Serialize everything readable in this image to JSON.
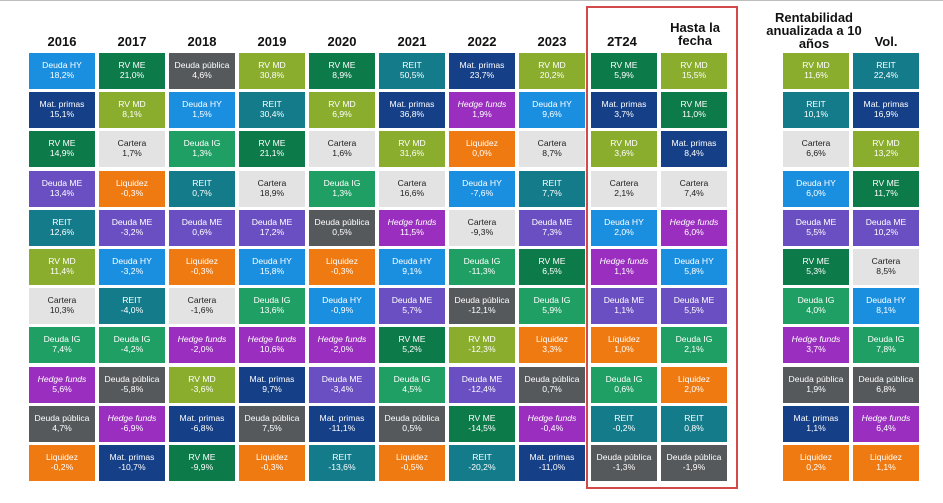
{
  "colors": {
    "RV ME": "#0d7a4a",
    "RV MD": "#8aad2e",
    "Deuda HY": "#1a8fe0",
    "Deuda IG": "#1f9f63",
    "Deuda ME": "#6a4fc3",
    "Deuda pública": "#56595c",
    "Cartera": "#e3e3e3",
    "Liquidez": "#ef7a12",
    "REIT": "#137b8a",
    "Mat. primas": "#153f86",
    "Hedge funds": "#9a2fbf"
  },
  "chart_data": {
    "type": "table",
    "columns": [
      {
        "header": "2016",
        "cells": [
          {
            "name": "Deuda HY",
            "value": "18,2%"
          },
          {
            "name": "Mat. primas",
            "value": "15,1%"
          },
          {
            "name": "RV ME",
            "value": "14,9%"
          },
          {
            "name": "Deuda ME",
            "value": "13,4%"
          },
          {
            "name": "REIT",
            "value": "12,6%"
          },
          {
            "name": "RV MD",
            "value": "11,4%"
          },
          {
            "name": "Cartera",
            "value": "10,3%"
          },
          {
            "name": "Deuda IG",
            "value": "7,4%"
          },
          {
            "name": "Hedge funds",
            "value": "5,6%"
          },
          {
            "name": "Deuda pública",
            "value": "4,7%"
          },
          {
            "name": "Liquidez",
            "value": "-0,2%"
          }
        ]
      },
      {
        "header": "2017",
        "cells": [
          {
            "name": "RV ME",
            "value": "21,0%"
          },
          {
            "name": "RV MD",
            "value": "8,1%"
          },
          {
            "name": "Cartera",
            "value": "1,7%"
          },
          {
            "name": "Liquidez",
            "value": "-0,3%"
          },
          {
            "name": "Deuda ME",
            "value": "-3,2%"
          },
          {
            "name": "Deuda HY",
            "value": "-3,2%"
          },
          {
            "name": "REIT",
            "value": "-4,0%"
          },
          {
            "name": "Deuda IG",
            "value": "-4,2%"
          },
          {
            "name": "Deuda pública",
            "value": "-5,8%"
          },
          {
            "name": "Hedge funds",
            "value": "-6,9%"
          },
          {
            "name": "Mat. primas",
            "value": "-10,7%"
          }
        ]
      },
      {
        "header": "2018",
        "cells": [
          {
            "name": "Deuda pública",
            "value": "4,6%"
          },
          {
            "name": "Deuda HY",
            "value": "1,5%"
          },
          {
            "name": "Deuda IG",
            "value": "1,3%"
          },
          {
            "name": "REIT",
            "value": "0,7%"
          },
          {
            "name": "Deuda ME",
            "value": "0,6%"
          },
          {
            "name": "Liquidez",
            "value": "-0,3%"
          },
          {
            "name": "Cartera",
            "value": "-1,6%"
          },
          {
            "name": "Hedge funds",
            "value": "-2,0%"
          },
          {
            "name": "RV MD",
            "value": "-3,6%"
          },
          {
            "name": "Mat. primas",
            "value": "-6,8%"
          },
          {
            "name": "RV ME",
            "value": "-9,9%"
          }
        ]
      },
      {
        "header": "2019",
        "cells": [
          {
            "name": "RV MD",
            "value": "30,8%"
          },
          {
            "name": "REIT",
            "value": "30,4%"
          },
          {
            "name": "RV ME",
            "value": "21,1%"
          },
          {
            "name": "Cartera",
            "value": "18,9%"
          },
          {
            "name": "Deuda ME",
            "value": "17,2%"
          },
          {
            "name": "Deuda HY",
            "value": "15,8%"
          },
          {
            "name": "Deuda IG",
            "value": "13,6%"
          },
          {
            "name": "Hedge funds",
            "value": "10,6%"
          },
          {
            "name": "Mat. primas",
            "value": "9,7%"
          },
          {
            "name": "Deuda pública",
            "value": "7,5%"
          },
          {
            "name": "Liquidez",
            "value": "-0,3%"
          }
        ]
      },
      {
        "header": "2020",
        "cells": [
          {
            "name": "RV ME",
            "value": "8,9%"
          },
          {
            "name": "RV MD",
            "value": "6,9%"
          },
          {
            "name": "Cartera",
            "value": "1,6%"
          },
          {
            "name": "Deuda IG",
            "value": "1,3%"
          },
          {
            "name": "Deuda pública",
            "value": "0,5%"
          },
          {
            "name": "Liquidez",
            "value": "-0,3%"
          },
          {
            "name": "Deuda HY",
            "value": "-0,9%"
          },
          {
            "name": "Hedge funds",
            "value": "-2,0%"
          },
          {
            "name": "Deuda ME",
            "value": "-3,4%"
          },
          {
            "name": "Mat. primas",
            "value": "-11,1%"
          },
          {
            "name": "REIT",
            "value": "-13,6%"
          }
        ]
      },
      {
        "header": "2021",
        "cells": [
          {
            "name": "REIT",
            "value": "50,5%"
          },
          {
            "name": "Mat. primas",
            "value": "36,8%"
          },
          {
            "name": "RV MD",
            "value": "31,6%"
          },
          {
            "name": "Cartera",
            "value": "16,6%"
          },
          {
            "name": "Hedge funds",
            "value": "11,5%"
          },
          {
            "name": "Deuda HY",
            "value": "9,1%"
          },
          {
            "name": "Deuda ME",
            "value": "5,7%"
          },
          {
            "name": "RV ME",
            "value": "5,2%"
          },
          {
            "name": "Deuda IG",
            "value": "4,5%"
          },
          {
            "name": "Deuda pública",
            "value": "0,5%"
          },
          {
            "name": "Liquidez",
            "value": "-0,5%"
          }
        ]
      },
      {
        "header": "2022",
        "cells": [
          {
            "name": "Mat. primas",
            "value": "23,7%"
          },
          {
            "name": "Hedge funds",
            "value": "1,9%"
          },
          {
            "name": "Liquidez",
            "value": "0,0%"
          },
          {
            "name": "Deuda HY",
            "value": "-7,6%"
          },
          {
            "name": "Cartera",
            "value": "-9,3%"
          },
          {
            "name": "Deuda IG",
            "value": "-11,3%"
          },
          {
            "name": "Deuda pública",
            "value": "-12,1%"
          },
          {
            "name": "RV MD",
            "value": "-12,3%"
          },
          {
            "name": "Deuda ME",
            "value": "-12,4%"
          },
          {
            "name": "RV ME",
            "value": "-14,5%"
          },
          {
            "name": "REIT",
            "value": "-20,2%"
          }
        ]
      },
      {
        "header": "2023",
        "cells": [
          {
            "name": "RV MD",
            "value": "20,2%"
          },
          {
            "name": "Deuda HY",
            "value": "9,6%"
          },
          {
            "name": "Cartera",
            "value": "8,7%"
          },
          {
            "name": "REIT",
            "value": "7,7%"
          },
          {
            "name": "Deuda ME",
            "value": "7,3%"
          },
          {
            "name": "RV ME",
            "value": "6,5%"
          },
          {
            "name": "Deuda IG",
            "value": "5,9%"
          },
          {
            "name": "Liquidez",
            "value": "3,3%"
          },
          {
            "name": "Deuda pública",
            "value": "0,7%"
          },
          {
            "name": "Hedge funds",
            "value": "-0,4%"
          },
          {
            "name": "Mat. primas",
            "value": "-11,0%"
          }
        ]
      },
      {
        "header": "2T24",
        "cells": [
          {
            "name": "RV ME",
            "value": "5,9%"
          },
          {
            "name": "Mat. primas",
            "value": "3,7%"
          },
          {
            "name": "RV MD",
            "value": "3,6%"
          },
          {
            "name": "Cartera",
            "value": "2,1%"
          },
          {
            "name": "Deuda HY",
            "value": "2,0%"
          },
          {
            "name": "Hedge funds",
            "value": "1,1%"
          },
          {
            "name": "Deuda ME",
            "value": "1,1%"
          },
          {
            "name": "Liquidez",
            "value": "1,0%"
          },
          {
            "name": "Deuda IG",
            "value": "0,6%"
          },
          {
            "name": "REIT",
            "value": "-0,2%"
          },
          {
            "name": "Deuda pública",
            "value": "-1,3%"
          }
        ]
      },
      {
        "header": "Hasta la fecha",
        "cells": [
          {
            "name": "RV MD",
            "value": "15,5%"
          },
          {
            "name": "RV ME",
            "value": "11,0%"
          },
          {
            "name": "Mat. primas",
            "value": "8,4%"
          },
          {
            "name": "Cartera",
            "value": "7,4%"
          },
          {
            "name": "Hedge funds",
            "value": "6,0%"
          },
          {
            "name": "Deuda HY",
            "value": "5,8%"
          },
          {
            "name": "Deuda ME",
            "value": "5,5%"
          },
          {
            "name": "Deuda IG",
            "value": "2,1%"
          },
          {
            "name": "Liquidez",
            "value": "2,0%"
          },
          {
            "name": "REIT",
            "value": "0,8%"
          },
          {
            "name": "Deuda pública",
            "value": "-1,9%"
          }
        ]
      },
      {
        "header": "Rentabilidad anualizada a 10 años",
        "cells": [
          {
            "name": "RV MD",
            "value": "11,6%"
          },
          {
            "name": "REIT",
            "value": "10,1%"
          },
          {
            "name": "Cartera",
            "value": "6,6%"
          },
          {
            "name": "Deuda HY",
            "value": "6,0%"
          },
          {
            "name": "Deuda ME",
            "value": "5,5%"
          },
          {
            "name": "RV ME",
            "value": "5,3%"
          },
          {
            "name": "Deuda IG",
            "value": "4,0%"
          },
          {
            "name": "Hedge funds",
            "value": "3,7%"
          },
          {
            "name": "Deuda pública",
            "value": "1,9%"
          },
          {
            "name": "Mat. primas",
            "value": "1,1%"
          },
          {
            "name": "Liquidez",
            "value": "0,2%"
          }
        ]
      },
      {
        "header": "Vol.",
        "cells": [
          {
            "name": "REIT",
            "value": "22,4%"
          },
          {
            "name": "Mat. primas",
            "value": "16,9%"
          },
          {
            "name": "RV MD",
            "value": "13,2%"
          },
          {
            "name": "RV ME",
            "value": "11,7%"
          },
          {
            "name": "Deuda ME",
            "value": "10,2%"
          },
          {
            "name": "Cartera",
            "value": "8,5%"
          },
          {
            "name": "Deuda HY",
            "value": "8,1%"
          },
          {
            "name": "Deuda IG",
            "value": "7,8%"
          },
          {
            "name": "Deuda pública",
            "value": "6,8%"
          },
          {
            "name": "Hedge funds",
            "value": "6,4%"
          },
          {
            "name": "Liquidez",
            "value": "1,1%"
          }
        ]
      }
    ]
  }
}
